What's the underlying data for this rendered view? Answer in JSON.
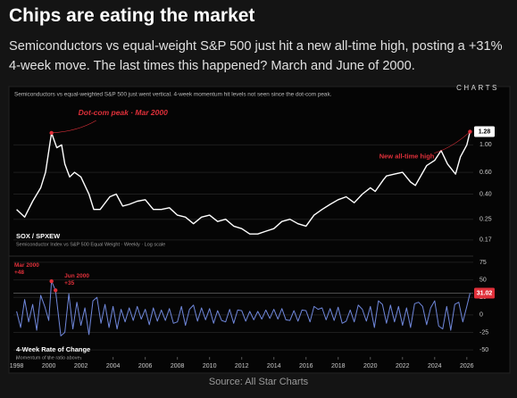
{
  "header": {
    "title": "Chips are eating the market",
    "subtitle": "Semiconductors vs equal-weight S&P 500 just hit a new all-time high, posting a +31% 4-week move. The last times this happened? March and June of 2000."
  },
  "footer": {
    "source": "Source: All Star Charts"
  },
  "chart_panel": {
    "caption": "Semiconductors vs equal-weighted S&P 500 just went vertical. 4-week momentum hit levels not seen since the dot-com peak.",
    "logo": "CHARTS"
  },
  "chart_data": [
    {
      "type": "line",
      "title": "SOX / SPXEW",
      "subtitle": "Semiconductor Index vs S&P 500 Equal Weight · Weekly · Log scale",
      "log_scale": true,
      "grid": true,
      "color": "#ffffff",
      "xlim": [
        1997.8,
        2026.4
      ],
      "ylim": [
        0.13,
        2.2
      ],
      "yticks": [
        0.17,
        0.25,
        {
          "value": 0.4,
          "label": "0.40"
        },
        {
          "value": 0.6,
          "label": "0.60"
        },
        {
          "value": 1,
          "label": "1.00"
        }
      ],
      "x": [
        1998,
        1998.5,
        1999,
        1999.5,
        1999.8,
        2000.17,
        2000.5,
        2000.8,
        2001,
        2001.3,
        2001.6,
        2002,
        2002.5,
        2002.8,
        2003.2,
        2003.8,
        2004.2,
        2004.6,
        2005,
        2005.5,
        2006,
        2006.5,
        2007,
        2007.5,
        2008,
        2008.5,
        2009,
        2009.5,
        2010,
        2010.5,
        2011,
        2011.5,
        2012,
        2012.5,
        2013,
        2013.5,
        2014,
        2014.5,
        2015,
        2015.5,
        2016,
        2016.5,
        2017,
        2017.5,
        2018,
        2018.5,
        2019,
        2019.5,
        2020,
        2020.3,
        2020.8,
        2021,
        2021.5,
        2022,
        2022.5,
        2022.8,
        2023.2,
        2023.5,
        2024,
        2024.4,
        2024.8,
        2025.3,
        2025.6,
        2026,
        2026.2
      ],
      "values": [
        0.3,
        0.26,
        0.35,
        0.45,
        0.6,
        1.25,
        0.95,
        1.0,
        0.7,
        0.55,
        0.6,
        0.55,
        0.4,
        0.3,
        0.3,
        0.38,
        0.4,
        0.32,
        0.33,
        0.35,
        0.36,
        0.3,
        0.3,
        0.31,
        0.27,
        0.26,
        0.23,
        0.26,
        0.27,
        0.24,
        0.25,
        0.22,
        0.21,
        0.19,
        0.19,
        0.2,
        0.21,
        0.24,
        0.25,
        0.23,
        0.22,
        0.27,
        0.3,
        0.33,
        0.36,
        0.38,
        0.34,
        0.4,
        0.45,
        0.42,
        0.52,
        0.56,
        0.58,
        0.6,
        0.5,
        0.47,
        0.58,
        0.68,
        0.75,
        0.9,
        0.7,
        0.58,
        0.8,
        1.0,
        1.28
      ],
      "annotations": [
        {
          "text": "Dot-com peak · Mar 2000",
          "x": 2000.17
        },
        {
          "text": "New all-time high",
          "x": 2026.2
        }
      ]
    },
    {
      "type": "line",
      "title": "4-Week Rate of Change",
      "subtitle": "Momentum of the ratio above",
      "grid": true,
      "color": "#7088dc",
      "xlim": [
        1997.8,
        2026.4
      ],
      "ylim": [
        -60,
        80
      ],
      "xticks": [
        1998,
        2000,
        2002,
        2004,
        2006,
        2008,
        2010,
        2012,
        2014,
        2016,
        2018,
        2020,
        2022,
        2024,
        2026
      ],
      "yticks": [
        -50,
        -25,
        0,
        25,
        50,
        75
      ],
      "x": [
        1998,
        1998.25,
        1998.5,
        1998.75,
        1999,
        1999.25,
        1999.5,
        1999.75,
        2000,
        2000.17,
        2000.42,
        2000.75,
        2001,
        2001.25,
        2001.5,
        2001.75,
        2002,
        2002.25,
        2002.5,
        2002.75,
        2003,
        2003.25,
        2003.5,
        2003.75,
        2004,
        2004.25,
        2004.5,
        2004.75,
        2005,
        2005.25,
        2005.5,
        2005.75,
        2006,
        2006.25,
        2006.5,
        2006.75,
        2007,
        2007.25,
        2007.5,
        2007.75,
        2008,
        2008.25,
        2008.5,
        2008.75,
        2009,
        2009.25,
        2009.5,
        2009.75,
        2010,
        2010.25,
        2010.5,
        2010.75,
        2011,
        2011.25,
        2011.5,
        2011.75,
        2012,
        2012.25,
        2012.5,
        2012.75,
        2013,
        2013.25,
        2013.5,
        2013.75,
        2014,
        2014.25,
        2014.5,
        2014.75,
        2015,
        2015.25,
        2015.5,
        2015.75,
        2016,
        2016.25,
        2016.5,
        2016.75,
        2017,
        2017.25,
        2017.5,
        2017.75,
        2018,
        2018.25,
        2018.5,
        2018.75,
        2019,
        2019.25,
        2019.5,
        2019.75,
        2020,
        2020.25,
        2020.5,
        2020.75,
        2021,
        2021.25,
        2021.5,
        2021.75,
        2022,
        2022.25,
        2022.5,
        2022.75,
        2023,
        2023.25,
        2023.5,
        2023.75,
        2024,
        2024.25,
        2024.5,
        2024.75,
        2025,
        2025.25,
        2025.5,
        2025.75,
        2026,
        2026.2
      ],
      "values": [
        5,
        -18,
        22,
        -10,
        15,
        -22,
        28,
        12,
        -8,
        48,
        35,
        -30,
        -25,
        30,
        -20,
        18,
        -15,
        10,
        -28,
        20,
        25,
        -12,
        15,
        -18,
        12,
        -20,
        8,
        -10,
        10,
        -8,
        12,
        -6,
        8,
        -14,
        10,
        -9,
        7,
        -8,
        9,
        -12,
        -10,
        12,
        -15,
        8,
        14,
        -9,
        10,
        -7,
        9,
        -12,
        6,
        -8,
        -10,
        8,
        -12,
        7,
        6,
        -9,
        5,
        -7,
        5,
        -6,
        7,
        -5,
        8,
        -6,
        9,
        -7,
        -8,
        6,
        -9,
        7,
        6,
        -10,
        12,
        8,
        10,
        -7,
        9,
        -8,
        11,
        -12,
        -9,
        7,
        -10,
        14,
        8,
        -9,
        12,
        -18,
        20,
        15,
        -12,
        14,
        -10,
        12,
        -15,
        10,
        -18,
        16,
        18,
        12,
        -14,
        10,
        20,
        -16,
        -20,
        12,
        -22,
        15,
        18,
        -10,
        12,
        31.02
      ],
      "value_labels": [
        null,
        null,
        null,
        null,
        null,
        null,
        null,
        null,
        null,
        "+48",
        "+35",
        null,
        null,
        null,
        null,
        null,
        null,
        null,
        null,
        null,
        null,
        null,
        null,
        null,
        null,
        null,
        null,
        null,
        null,
        null,
        null,
        null,
        null,
        null,
        null,
        null,
        null,
        null,
        null,
        null,
        null,
        null,
        null,
        null,
        null,
        null,
        null,
        null,
        null,
        null,
        null,
        null,
        null,
        null,
        null,
        null,
        null,
        null,
        null,
        null,
        null,
        null,
        null,
        null,
        null,
        null,
        null,
        null,
        null,
        null,
        null,
        null,
        null,
        null,
        null,
        null,
        null,
        null,
        null,
        null,
        null,
        null,
        null,
        null,
        null,
        null,
        null,
        null,
        null,
        null,
        null,
        null,
        null,
        null,
        null,
        null,
        null,
        null,
        null,
        null,
        null,
        null,
        null,
        null,
        null,
        null,
        null,
        null,
        null,
        null,
        null,
        null,
        null,
        null
      ],
      "annotations": [
        {
          "text": "Mar 2000",
          "x": 2000.17
        },
        {
          "text": "Jun 2000",
          "x": 2000.42
        }
      ]
    }
  ]
}
